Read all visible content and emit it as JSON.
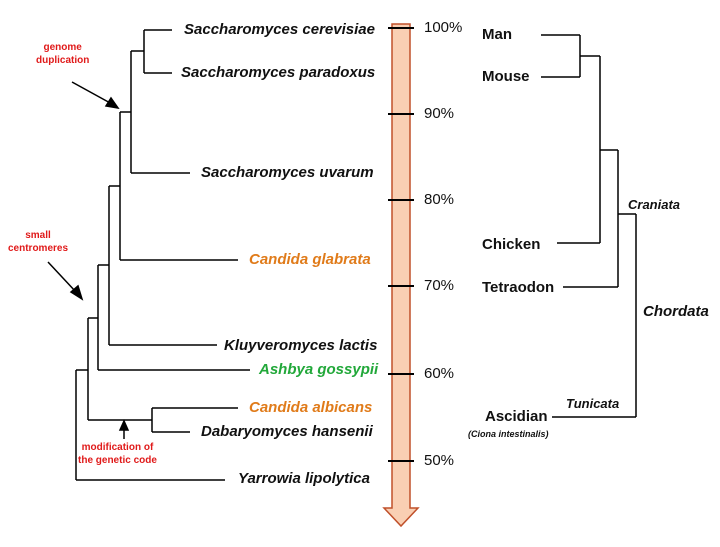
{
  "species": {
    "s1": "Saccharomyces cerevisiae",
    "s2": "Saccharomyces paradoxus",
    "s3": "Saccharomyces uvarum",
    "s4": "Candida glabrata",
    "s5": "Kluyveromyces lactis",
    "s6": "Ashbya gossypii",
    "s7": "Candida albicans",
    "s8": "Dabaryomyces hansenii",
    "s9": "Yarrowia lipolytica"
  },
  "events": {
    "genome_duplication": [
      "genome",
      "duplication"
    ],
    "small_centromeres": [
      "small",
      "centromeres"
    ],
    "genetic_code": [
      "modification of",
      "the genetic code"
    ]
  },
  "scale": {
    "p100": "100%",
    "p90": "90%",
    "p80": "80%",
    "p70": "70%",
    "p60": "60%",
    "p50": "50%"
  },
  "animals": {
    "man": "Man",
    "mouse": "Mouse",
    "chicken": "Chicken",
    "tetraodon": "Tetraodon",
    "ascidian": "Ascidian",
    "ascidian_sub": "(Ciona intestinalis)"
  },
  "clades": {
    "craniata": "Craniata",
    "chordata": "Chordata",
    "tunicata": "Tunicata"
  },
  "colors": {
    "orange": "#e07b1a",
    "green": "#22a83a",
    "red": "#e01a1a",
    "arrow_fill": "#f9cfb3",
    "arrow_stroke": "#c0502a"
  }
}
